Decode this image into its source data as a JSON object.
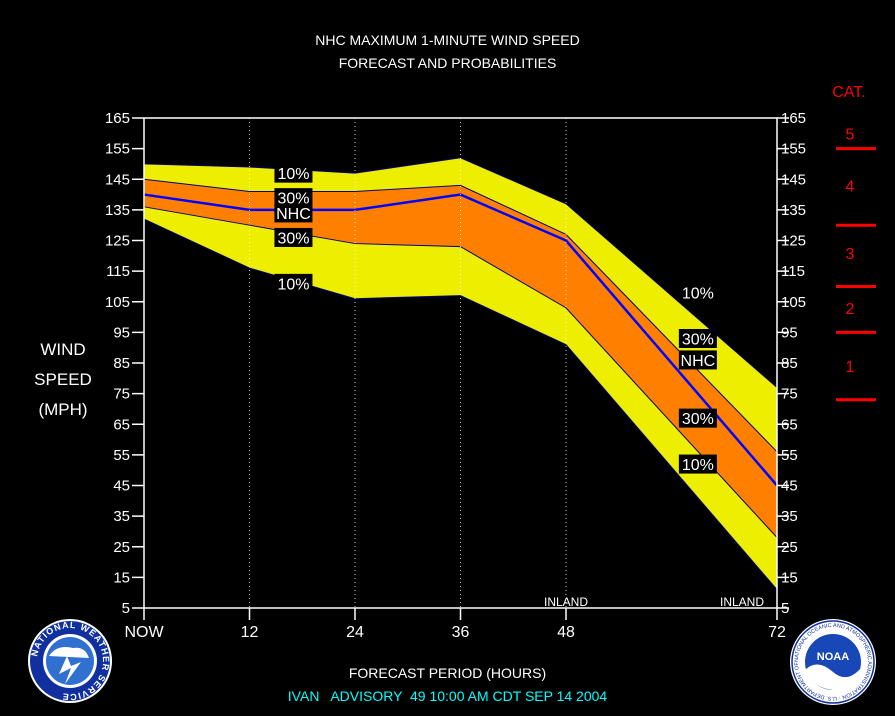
{
  "title_line1": "NHC MAXIMUM 1-MINUTE WIND SPEED",
  "title_line2": "FORECAST AND PROBABILITIES",
  "footer": {
    "xaxis_label": "FORECAST PERIOD (HOURS)",
    "storm": "IVAN",
    "advisory": "ADVISORY",
    "advisory_number": "49",
    "time": "10:00",
    "ampm": "AM",
    "tz": "CDT",
    "date": "SEP 14 2004",
    "color_xlabel": "#ffffff",
    "color_advisory": "#00ffff"
  },
  "logos": {
    "left": {
      "name": "nws-logo",
      "text": "NATIONAL WEATHER SERVICE"
    },
    "right": {
      "name": "noaa-logo",
      "text": "NOAA",
      "ring_text": "NATIONAL OCEANIC AND ATMOSPHERIC ADMINISTRATION · U.S. DEPARTMENT OF COMMERCE"
    }
  },
  "chart_data": {
    "type": "area",
    "ylabel": [
      "WIND",
      "SPEED",
      "(MPH)"
    ],
    "ylim": [
      5,
      165
    ],
    "yticks": [
      5,
      15,
      25,
      35,
      45,
      55,
      65,
      75,
      85,
      95,
      105,
      115,
      125,
      135,
      145,
      155,
      165
    ],
    "xticks": [
      {
        "value": 0,
        "label": "NOW"
      },
      {
        "value": 12,
        "label": "12"
      },
      {
        "value": 24,
        "label": "24"
      },
      {
        "value": 36,
        "label": "36"
      },
      {
        "value": 48,
        "label": "48"
      },
      {
        "value": 72,
        "label": "72"
      }
    ],
    "xlim": [
      0,
      72
    ],
    "x": [
      0,
      12,
      24,
      36,
      48,
      72
    ],
    "series": [
      {
        "name": "10% upper",
        "values": [
          150,
          149,
          147,
          152,
          137,
          77
        ]
      },
      {
        "name": "30% upper",
        "values": [
          145,
          141,
          141,
          143,
          127,
          56
        ]
      },
      {
        "name": "NHC",
        "values": [
          140,
          135,
          135,
          140,
          125,
          45
        ]
      },
      {
        "name": "30% lower",
        "values": [
          136,
          130,
          124,
          123,
          103,
          28
        ]
      },
      {
        "name": "10% lower",
        "values": [
          132,
          116,
          106,
          107,
          91,
          11
        ]
      }
    ],
    "band_labels": [
      {
        "text": "10%",
        "x": 17,
        "y": 147
      },
      {
        "text": "30%",
        "x": 17,
        "y": 139
      },
      {
        "text": "NHC",
        "x": 17,
        "y": 134
      },
      {
        "text": "30%",
        "x": 17,
        "y": 126
      },
      {
        "text": "10%",
        "x": 17,
        "y": 111
      },
      {
        "text": "10%",
        "x": 63,
        "y": 108
      },
      {
        "text": "30%",
        "x": 63,
        "y": 93
      },
      {
        "text": "NHC",
        "x": 63,
        "y": 86
      },
      {
        "text": "30%",
        "x": 63,
        "y": 67
      },
      {
        "text": "10%",
        "x": 63,
        "y": 52
      }
    ],
    "inland": [
      {
        "text": "INLAND",
        "x": 48
      },
      {
        "text": "INLAND",
        "x": 72
      }
    ],
    "category_scale": {
      "title": "CAT.",
      "color": "#ff0000",
      "boundaries": [
        155,
        130,
        110,
        95,
        73
      ],
      "labels": [
        {
          "text": "5",
          "y": 160
        },
        {
          "text": "4",
          "y": 143
        },
        {
          "text": "3",
          "y": 121
        },
        {
          "text": "2",
          "y": 103
        },
        {
          "text": "1",
          "y": 84
        }
      ]
    },
    "colors": {
      "outer_band": "#eeee00",
      "inner_band": "#ff8000",
      "nhc_line": "#0000ff",
      "frame": "#ffffff",
      "band_edge": "#000080"
    },
    "grid": "dotted vertical at 12, 24, 36, 48"
  }
}
